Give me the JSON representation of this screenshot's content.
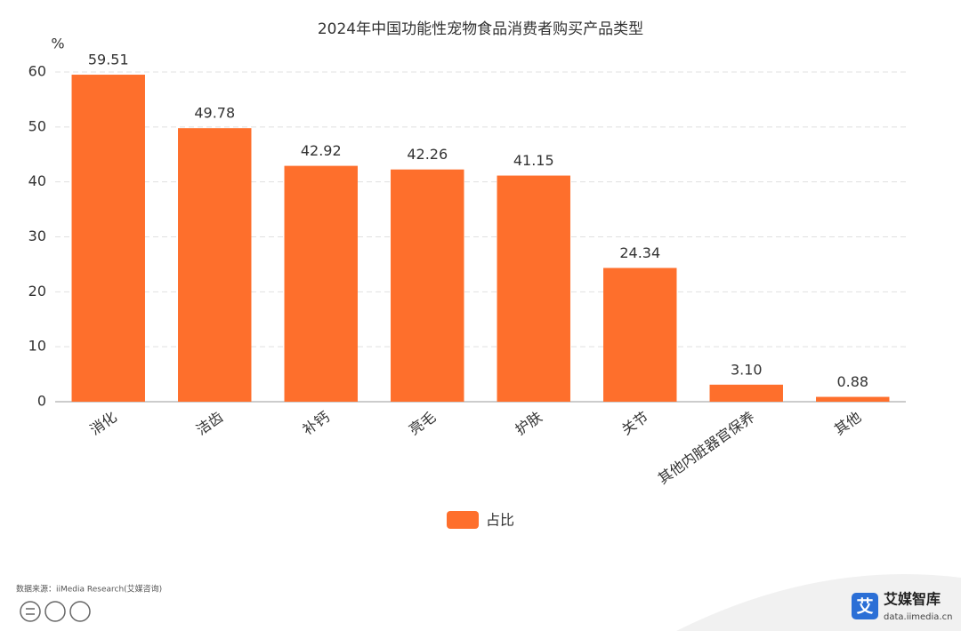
{
  "chart_data": {
    "type": "bar",
    "title": "2024年中国功能性宠物食品消费者购买产品类型",
    "y_unit": "%",
    "categories": [
      "消化",
      "洁齿",
      "补钙",
      "亮毛",
      "护肤",
      "关节",
      "其他内脏器官保养",
      "其他"
    ],
    "series": [
      {
        "name": "占比",
        "color": "#fe6f2c",
        "values": [
          59.51,
          49.78,
          42.92,
          42.26,
          41.15,
          24.34,
          3.1,
          0.88
        ],
        "value_labels": [
          "59.51",
          "49.78",
          "42.92",
          "42.26",
          "41.15",
          "24.34",
          "3.10",
          "0.88"
        ]
      }
    ],
    "ylim": [
      0,
      60
    ],
    "yticks": [
      0,
      10,
      20,
      30,
      40,
      50,
      60
    ],
    "grid": true,
    "legend": "bottom",
    "source": "数据来源：iiMedia Research(艾媒咨询)",
    "brand": {
      "name": "艾媒智库",
      "url": "data.iimedia.cn",
      "icon": "艾"
    }
  }
}
